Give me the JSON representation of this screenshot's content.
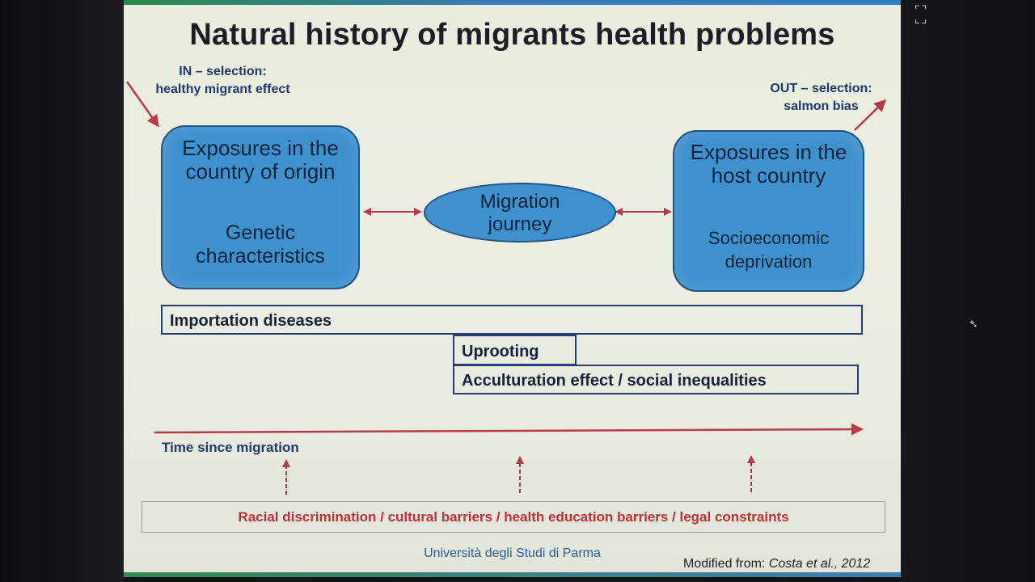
{
  "title": "Natural history of migrants health problems",
  "in_selection": {
    "line1": "IN – selection:",
    "line2": "healthy migrant effect"
  },
  "out_selection": {
    "line1": "OUT – selection:",
    "line2": "salmon bias"
  },
  "origin_box": {
    "head1": "Exposures in the",
    "head2": "country of origin",
    "sub1": "Genetic",
    "sub2": "characteristics"
  },
  "journey": {
    "line1": "Migration",
    "line2": "journey"
  },
  "host_box": {
    "head1": "Exposures in the",
    "head2": "host country",
    "sub1": "Socioeconomic",
    "sub2": "deprivation"
  },
  "bars": {
    "importation": "Importation diseases",
    "uprooting": "Uprooting",
    "acculturation": "Acculturation effect / social inequalities"
  },
  "time_label": "Time since migration",
  "barriers": "Racial discrimination / cultural barriers /  health education barriers / legal constraints",
  "footer": "Università degli Studi di Parma",
  "credit": {
    "prefix": "Modified from: ",
    "source": "Costa et al., 2012"
  },
  "colors": {
    "box_fill": "#3f91cd",
    "arrow_red": "#b83a48",
    "text_blue": "#1f3a68"
  },
  "icons": {
    "fullscreen": "fullscreen-icon",
    "cursor": "cursor-icon"
  }
}
